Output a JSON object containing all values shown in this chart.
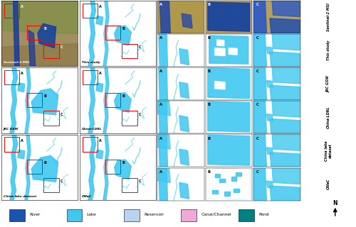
{
  "legend_items": [
    {
      "label": "River",
      "color": "#1855b0"
    },
    {
      "label": "Lake",
      "color": "#40c8f0"
    },
    {
      "label": "Reservoir",
      "color": "#b8d4f0"
    },
    {
      "label": "Canal/Channel",
      "color": "#f0a8d8"
    },
    {
      "label": "Pond",
      "color": "#008080"
    }
  ],
  "row_labels": [
    "Sentinel-2 MSI",
    "This study",
    "JRC GSW",
    "China-LDRL",
    "China lake\ndataset",
    "CWaC"
  ],
  "large_map_labels": [
    [
      "Sentinel-2 MSI",
      "This study"
    ],
    [
      "JRC GSW",
      "China-LDRL"
    ],
    [
      "China lake dataset",
      "CWaC"
    ]
  ],
  "bg_color": "#ffffff",
  "cyan": "#40c8f0",
  "dark_blue": "#1855b0",
  "light_blue": "#b8d4f0",
  "pink": "#f0a8d8",
  "teal": "#008080"
}
